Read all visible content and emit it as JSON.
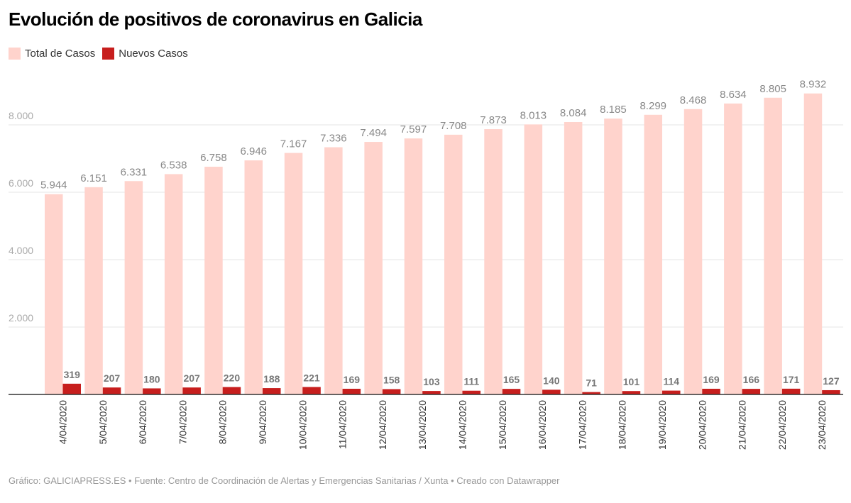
{
  "title": "Evolución de positivos de coronavirus en Galicia",
  "footer": "Gráfico: GALICIAPRESS.ES • Fuente: Centro de Coordinación de Alertas y Emergencias Sanitarias / Xunta • Creado con Datawrapper",
  "chart_data": {
    "type": "bar",
    "title": "Evolución de positivos de coronavirus en Galicia",
    "legend_position": "top-left",
    "grid": true,
    "ylim": [
      0,
      9000
    ],
    "yticks": [
      2000,
      4000,
      6000,
      8000
    ],
    "ytick_labels": [
      "2.000",
      "4.000",
      "6.000",
      "8.000"
    ],
    "categories": [
      "4/04/2020",
      "5/04/2020",
      "6/04/2020",
      "7/04/2020",
      "8/04/2020",
      "9/04/2020",
      "10/04/2020",
      "11/04/2020",
      "12/04/2020",
      "13/04/2020",
      "14/04/2020",
      "15/04/2020",
      "16/04/2020",
      "17/04/2020",
      "18/04/2020",
      "19/04/2020",
      "20/04/2020",
      "21/04/2020",
      "22/04/2020",
      "23/04/2020"
    ],
    "series": [
      {
        "name": "Total de Casos",
        "color": "#ffd3cc",
        "values": [
          5944,
          6151,
          6331,
          6538,
          6758,
          6946,
          7167,
          7336,
          7494,
          7597,
          7708,
          7873,
          8013,
          8084,
          8185,
          8299,
          8468,
          8634,
          8805,
          8932
        ],
        "labels": [
          "5.944",
          "6.151",
          "6.331",
          "6.538",
          "6.758",
          "6.946",
          "7.167",
          "7.336",
          "7.494",
          "7.597",
          "7.708",
          "7.873",
          "8.013",
          "8.084",
          "8.185",
          "8.299",
          "8.468",
          "8.634",
          "8.805",
          "8.932"
        ]
      },
      {
        "name": "Nuevos Casos",
        "color": "#c71e1d",
        "values": [
          319,
          207,
          180,
          207,
          220,
          188,
          221,
          169,
          158,
          103,
          111,
          165,
          140,
          71,
          101,
          114,
          169,
          166,
          171,
          127
        ],
        "labels": [
          "319",
          "207",
          "180",
          "207",
          "220",
          "188",
          "221",
          "169",
          "158",
          "103",
          "111",
          "165",
          "140",
          "71",
          "101",
          "114",
          "169",
          "166",
          "171",
          "127"
        ]
      }
    ]
  }
}
